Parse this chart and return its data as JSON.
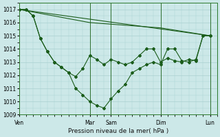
{
  "title": "Pression niveau de la mer( hPa )",
  "bg_color": "#cce8e8",
  "grid_color": "#aad0d0",
  "line_color": "#1a5c1a",
  "ylim": [
    1009,
    1017.5
  ],
  "yticks": [
    1009,
    1010,
    1011,
    1012,
    1013,
    1014,
    1015,
    1016,
    1017
  ],
  "xtick_labels": [
    "Ven",
    "Mar",
    "Sam",
    "Dim",
    "Lun"
  ],
  "xtick_positions": [
    0,
    10,
    13,
    20,
    27
  ],
  "xlim": [
    0,
    28
  ],
  "series1_x": [
    0,
    27
  ],
  "series1_y": [
    1017,
    1015
  ],
  "series2_x": [
    0,
    5,
    10,
    15,
    20,
    27
  ],
  "series2_y": [
    1017,
    1016.5,
    1016.0,
    1015.8,
    1015.6,
    1015
  ],
  "series3_x": [
    0,
    1,
    2,
    3,
    4,
    5,
    6,
    7,
    8,
    9,
    10,
    11,
    12,
    13,
    14,
    15,
    16,
    17,
    18,
    19,
    20,
    21,
    22,
    23,
    24,
    25,
    26,
    27
  ],
  "series3_y": [
    1017,
    1017,
    1016.5,
    1014.8,
    1013.8,
    1013.0,
    1012.6,
    1012.2,
    1011.9,
    1012.5,
    1013.5,
    1013.2,
    1012.8,
    1013.2,
    1013.0,
    1012.8,
    1013.0,
    1013.5,
    1014.0,
    1014.0,
    1013.0,
    1013.3,
    1013.1,
    1013.0,
    1013.2,
    1013.1,
    1015.0,
    1015.0
  ],
  "series4_x": [
    0,
    1,
    2,
    3,
    4,
    5,
    6,
    7,
    8,
    9,
    10,
    11,
    12,
    13,
    14,
    15,
    16,
    17,
    18,
    19,
    20,
    21,
    22,
    23,
    24,
    25,
    26,
    27
  ],
  "series4_y": [
    1017,
    1017,
    1016.5,
    1014.8,
    1013.8,
    1013.0,
    1012.6,
    1012.2,
    1011.0,
    1010.5,
    1010.0,
    1009.7,
    1009.5,
    1010.2,
    1010.8,
    1011.3,
    1012.2,
    1012.5,
    1012.8,
    1013.0,
    1012.8,
    1014.0,
    1014.0,
    1013.1,
    1013.0,
    1013.2,
    1015.0,
    1015.0
  ]
}
